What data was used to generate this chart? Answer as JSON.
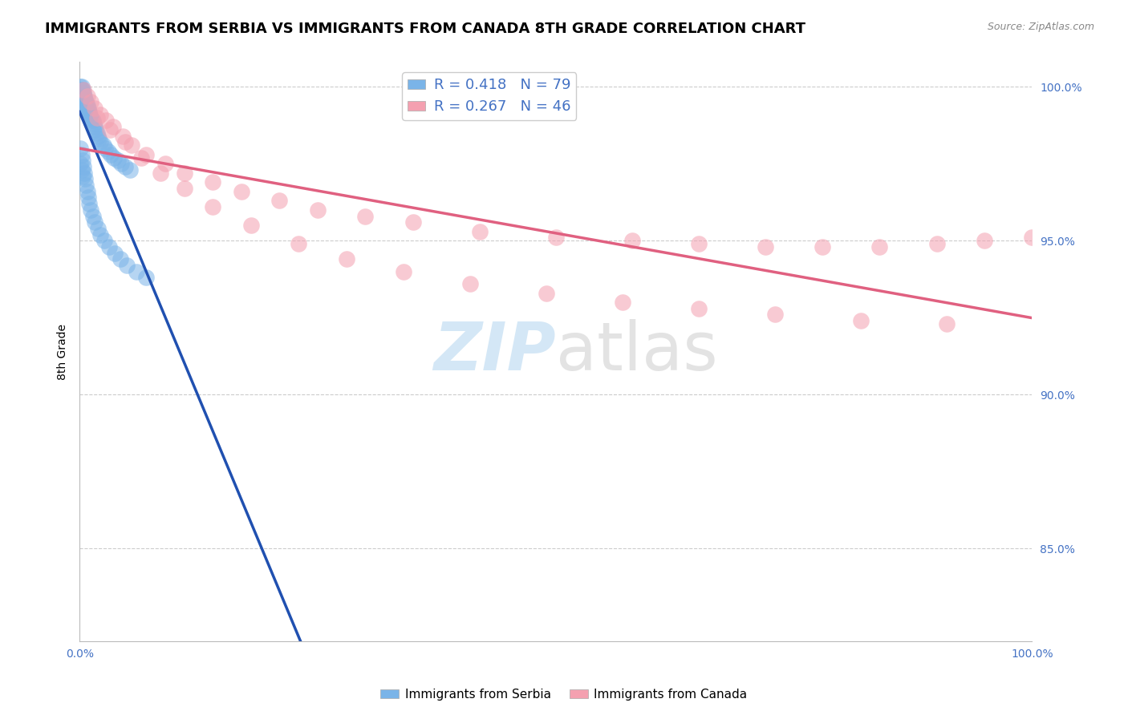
{
  "title": "IMMIGRANTS FROM SERBIA VS IMMIGRANTS FROM CANADA 8TH GRADE CORRELATION CHART",
  "source": "Source: ZipAtlas.com",
  "ylabel": "8th Grade",
  "xlim": [
    0.0,
    1.0
  ],
  "ylim": [
    0.82,
    1.008
  ],
  "yticks": [
    0.85,
    0.9,
    0.95,
    1.0
  ],
  "ytick_labels": [
    "85.0%",
    "90.0%",
    "95.0%",
    "100.0%"
  ],
  "xticks": [
    0.0,
    0.25,
    0.5,
    0.75,
    1.0
  ],
  "xtick_labels": [
    "0.0%",
    "",
    "",
    "",
    "100.0%"
  ],
  "serbia_R": 0.418,
  "serbia_N": 79,
  "canada_R": 0.267,
  "canada_N": 46,
  "serbia_color": "#7ab4e8",
  "canada_color": "#f4a0b0",
  "serbia_line_color": "#2050b0",
  "canada_line_color": "#e06080",
  "serbia_x": [
    0.001,
    0.001,
    0.001,
    0.001,
    0.001,
    0.002,
    0.002,
    0.002,
    0.002,
    0.002,
    0.002,
    0.002,
    0.003,
    0.003,
    0.003,
    0.003,
    0.003,
    0.004,
    0.004,
    0.004,
    0.004,
    0.005,
    0.005,
    0.005,
    0.006,
    0.006,
    0.007,
    0.007,
    0.008,
    0.008,
    0.009,
    0.009,
    0.01,
    0.01,
    0.011,
    0.012,
    0.013,
    0.014,
    0.015,
    0.016,
    0.017,
    0.018,
    0.019,
    0.02,
    0.022,
    0.025,
    0.027,
    0.03,
    0.033,
    0.036,
    0.04,
    0.044,
    0.048,
    0.053,
    0.001,
    0.001,
    0.002,
    0.002,
    0.003,
    0.003,
    0.004,
    0.005,
    0.006,
    0.007,
    0.008,
    0.009,
    0.01,
    0.012,
    0.014,
    0.016,
    0.019,
    0.022,
    0.026,
    0.031,
    0.037,
    0.043,
    0.05,
    0.06,
    0.07
  ],
  "serbia_y": [
    1.0,
    0.999,
    0.998,
    0.997,
    0.996,
    1.0,
    0.999,
    0.998,
    0.997,
    0.996,
    0.995,
    0.994,
    0.999,
    0.998,
    0.997,
    0.996,
    0.995,
    0.998,
    0.997,
    0.996,
    0.995,
    0.997,
    0.996,
    0.995,
    0.996,
    0.995,
    0.995,
    0.994,
    0.994,
    0.993,
    0.993,
    0.992,
    0.992,
    0.991,
    0.991,
    0.99,
    0.989,
    0.989,
    0.988,
    0.987,
    0.986,
    0.985,
    0.984,
    0.983,
    0.982,
    0.981,
    0.98,
    0.979,
    0.978,
    0.977,
    0.976,
    0.975,
    0.974,
    0.973,
    0.98,
    0.975,
    0.978,
    0.973,
    0.976,
    0.971,
    0.974,
    0.972,
    0.97,
    0.968,
    0.966,
    0.964,
    0.962,
    0.96,
    0.958,
    0.956,
    0.954,
    0.952,
    0.95,
    0.948,
    0.946,
    0.944,
    0.942,
    0.94,
    0.938
  ],
  "canada_x": [
    0.004,
    0.008,
    0.012,
    0.016,
    0.022,
    0.028,
    0.035,
    0.045,
    0.055,
    0.07,
    0.09,
    0.11,
    0.14,
    0.17,
    0.21,
    0.25,
    0.3,
    0.35,
    0.42,
    0.5,
    0.58,
    0.65,
    0.72,
    0.78,
    0.84,
    0.9,
    0.95,
    1.0,
    0.018,
    0.032,
    0.048,
    0.065,
    0.085,
    0.11,
    0.14,
    0.18,
    0.23,
    0.28,
    0.34,
    0.41,
    0.49,
    0.57,
    0.65,
    0.73,
    0.82,
    0.91
  ],
  "canada_y": [
    0.999,
    0.997,
    0.995,
    0.993,
    0.991,
    0.989,
    0.987,
    0.984,
    0.981,
    0.978,
    0.975,
    0.972,
    0.969,
    0.966,
    0.963,
    0.96,
    0.958,
    0.956,
    0.953,
    0.951,
    0.95,
    0.949,
    0.948,
    0.948,
    0.948,
    0.949,
    0.95,
    0.951,
    0.99,
    0.986,
    0.982,
    0.977,
    0.972,
    0.967,
    0.961,
    0.955,
    0.949,
    0.944,
    0.94,
    0.936,
    0.933,
    0.93,
    0.928,
    0.926,
    0.924,
    0.923
  ],
  "watermark_zip": "ZIP",
  "watermark_atlas": "atlas",
  "bg_color": "#ffffff",
  "tick_color": "#4472c4",
  "grid_color": "#cccccc",
  "title_fontsize": 13,
  "label_fontsize": 10,
  "tick_fontsize": 10,
  "legend_fontsize": 13
}
